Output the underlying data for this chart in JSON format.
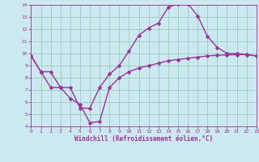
{
  "xlabel": "Windchill (Refroidissement éolien,°C)",
  "bg_color": "#cce8f0",
  "grid_color": "#99ccbb",
  "line_color": "#993399",
  "xlim": [
    0,
    23
  ],
  "ylim": [
    4,
    14
  ],
  "xticks": [
    0,
    1,
    2,
    3,
    4,
    5,
    6,
    7,
    8,
    9,
    10,
    11,
    12,
    13,
    14,
    15,
    16,
    17,
    18,
    19,
    20,
    21,
    22,
    23
  ],
  "yticks": [
    4,
    5,
    6,
    7,
    8,
    9,
    10,
    11,
    12,
    13,
    14
  ],
  "curve1_x": [
    0,
    1,
    2,
    3,
    4,
    5,
    6,
    7,
    8,
    9,
    10,
    11,
    12,
    13,
    14,
    15,
    16,
    17,
    18,
    19,
    20,
    21,
    22,
    23
  ],
  "curve1_y": [
    9.8,
    8.5,
    8.5,
    7.2,
    7.2,
    5.5,
    5.5,
    7.2,
    8.3,
    9.0,
    10.2,
    11.5,
    12.1,
    12.5,
    13.8,
    14.1,
    14.1,
    13.1,
    11.4,
    10.5,
    10.0,
    10.0,
    9.9,
    9.8
  ],
  "curve2_x": [
    0,
    1,
    2,
    3,
    4,
    5,
    6,
    7,
    8,
    9,
    10,
    11,
    12,
    13,
    14,
    15,
    16,
    17,
    18,
    19,
    20,
    21,
    22,
    23
  ],
  "curve2_y": [
    9.8,
    8.5,
    7.2,
    7.2,
    6.3,
    5.8,
    4.3,
    4.4,
    7.2,
    8.0,
    8.5,
    8.8,
    9.0,
    9.2,
    9.4,
    9.5,
    9.6,
    9.7,
    9.8,
    9.85,
    9.88,
    9.9,
    9.92,
    9.8
  ],
  "markersize": 2.5,
  "linewidth": 1.0,
  "tick_fontsize": 4.5,
  "xlabel_fontsize": 5.5
}
